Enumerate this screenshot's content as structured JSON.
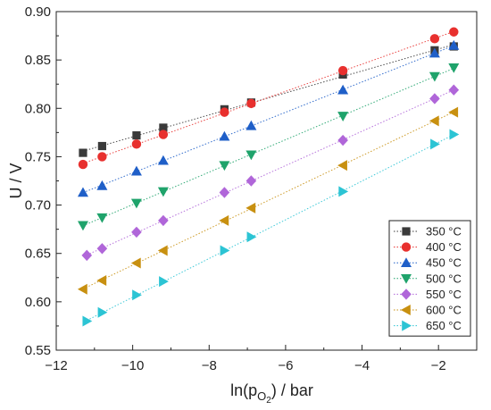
{
  "chart_data": {
    "type": "scatter",
    "xlabel": "ln(p",
    "xlabel_sub": "O",
    "xlabel_subsub": "2",
    "xlabel_tail": ") / bar",
    "ylabel": "U / V",
    "xlim": [
      -12,
      -1
    ],
    "ylim": [
      0.55,
      0.9
    ],
    "xticks": [
      -12,
      -10,
      -8,
      -6,
      -4,
      -2
    ],
    "xtick_labels": [
      "−12",
      "−10",
      "−8",
      "−6",
      "−4",
      "−2"
    ],
    "yticks": [
      0.55,
      0.6,
      0.65,
      0.7,
      0.75,
      0.8,
      0.85,
      0.9
    ],
    "ytick_labels": [
      "0.55",
      "0.60",
      "0.65",
      "0.70",
      "0.75",
      "0.80",
      "0.85",
      "0.90"
    ],
    "grid": false,
    "legend_position": "bottom-right",
    "series": [
      {
        "name": "350 °C",
        "marker": "square",
        "color": "#3a3a3a",
        "x": [
          -11.3,
          -10.8,
          -9.9,
          -9.2,
          -7.6,
          -6.9,
          -4.5,
          -2.1,
          -1.6
        ],
        "y": [
          0.754,
          0.761,
          0.772,
          0.78,
          0.799,
          0.806,
          0.835,
          0.86,
          0.864
        ]
      },
      {
        "name": "400 °C",
        "marker": "circle",
        "color": "#e8302e",
        "x": [
          -11.3,
          -10.8,
          -9.9,
          -9.2,
          -7.6,
          -6.9,
          -4.5,
          -2.1,
          -1.6
        ],
        "y": [
          0.742,
          0.75,
          0.763,
          0.773,
          0.796,
          0.805,
          0.839,
          0.872,
          0.879
        ]
      },
      {
        "name": "450 °C",
        "marker": "triangle-up",
        "color": "#1f5fc8",
        "x": [
          -11.3,
          -10.8,
          -9.9,
          -9.2,
          -7.6,
          -6.9,
          -4.5,
          -2.1,
          -1.6
        ],
        "y": [
          0.713,
          0.72,
          0.735,
          0.746,
          0.771,
          0.782,
          0.819,
          0.857,
          0.865
        ]
      },
      {
        "name": "500 °C",
        "marker": "triangle-down",
        "color": "#1fa36b",
        "x": [
          -11.3,
          -10.8,
          -9.9,
          -9.2,
          -7.6,
          -6.9,
          -4.5,
          -2.1,
          -1.6
        ],
        "y": [
          0.679,
          0.687,
          0.702,
          0.714,
          0.741,
          0.752,
          0.792,
          0.833,
          0.842
        ]
      },
      {
        "name": "550 °C",
        "marker": "diamond",
        "color": "#b066d9",
        "x": [
          -11.2,
          -10.8,
          -9.9,
          -9.2,
          -7.6,
          -6.9,
          -4.5,
          -2.1,
          -1.6
        ],
        "y": [
          0.648,
          0.655,
          0.672,
          0.684,
          0.713,
          0.725,
          0.767,
          0.81,
          0.819
        ]
      },
      {
        "name": "600 °C",
        "marker": "triangle-left",
        "color": "#c89010",
        "x": [
          -11.3,
          -10.8,
          -9.9,
          -9.2,
          -7.6,
          -6.9,
          -4.5,
          -2.1,
          -1.6
        ],
        "y": [
          0.613,
          0.622,
          0.64,
          0.653,
          0.684,
          0.697,
          0.741,
          0.787,
          0.796
        ]
      },
      {
        "name": "650 °C",
        "marker": "triangle-right",
        "color": "#2cc4d4",
        "x": [
          -11.2,
          -10.8,
          -9.9,
          -9.2,
          -7.6,
          -6.9,
          -4.5,
          -2.1,
          -1.6
        ],
        "y": [
          0.58,
          0.589,
          0.607,
          0.621,
          0.653,
          0.667,
          0.714,
          0.763,
          0.773
        ]
      }
    ]
  }
}
